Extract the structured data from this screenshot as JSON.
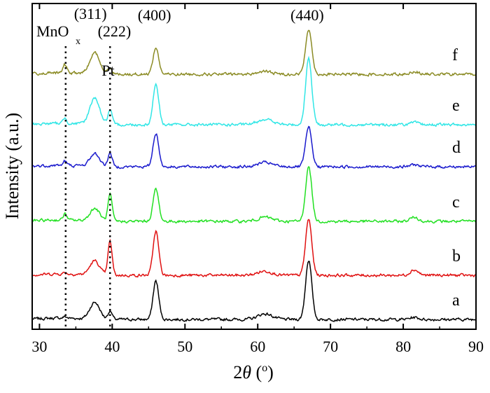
{
  "chart_data": {
    "type": "line",
    "title": "",
    "xlabel_prefix": "2",
    "xlabel_theta": "θ",
    "xlabel_open": " (",
    "xlabel_degree": "o",
    "xlabel_close": ")",
    "ylabel": "Intensity (a.u.)",
    "xlim": [
      29,
      90
    ],
    "x_ticks": [
      30,
      40,
      50,
      60,
      70,
      80,
      90
    ],
    "y_ticks_labeled": false,
    "grid": false,
    "reference_lines": [
      {
        "x": 33.6,
        "label": "MnO",
        "label_sub": "x"
      },
      {
        "x": 39.7,
        "label": "Pt"
      }
    ],
    "peak_annotations": [
      {
        "label": "(311)",
        "x": 37.0
      },
      {
        "label": "(222)",
        "x": 40.3
      },
      {
        "label": "(400)",
        "x": 45.8
      },
      {
        "label": "(440)",
        "x": 66.8
      }
    ],
    "peak_centers": {
      "mnox": 33.5,
      "p311": 37.6,
      "pt": 39.7,
      "p400": 46.0,
      "p440": 67.0,
      "p220": 61.0,
      "p533": 81.5
    },
    "series": [
      {
        "name": "a",
        "color": "#000000",
        "baseline": 10,
        "peaks": {
          "mnox": 2,
          "p311": 24,
          "pt": 12,
          "p400": 55,
          "p440": 85,
          "p220": 8,
          "p533": 3
        }
      },
      {
        "name": "b",
        "color": "#e01010",
        "baseline": 10,
        "peaks": {
          "mnox": 2,
          "p311": 20,
          "pt": 48,
          "p400": 63,
          "p440": 80,
          "p220": 6,
          "p533": 8
        }
      },
      {
        "name": "c",
        "color": "#22e022",
        "baseline": 10,
        "peaks": {
          "mnox": 9,
          "p311": 18,
          "pt": 38,
          "p400": 46,
          "p440": 78,
          "p220": 6,
          "p533": 6
        }
      },
      {
        "name": "d",
        "color": "#1a1acd",
        "baseline": 10,
        "peaks": {
          "mnox": 6,
          "p311": 18,
          "pt": 20,
          "p400": 48,
          "p440": 56,
          "p220": 6,
          "p533": 3
        }
      },
      {
        "name": "e",
        "color": "#30e6e6",
        "baseline": 10,
        "peaks": {
          "mnox": 8,
          "p311": 38,
          "pt": 20,
          "p400": 58,
          "p440": 95,
          "p220": 8,
          "p533": 3
        }
      },
      {
        "name": "f",
        "color": "#8b8b24",
        "baseline": 10,
        "peaks": {
          "mnox": 12,
          "p311": 30,
          "pt": 10,
          "p400": 38,
          "p440": 65,
          "p220": 4,
          "p533": 4
        }
      }
    ]
  }
}
